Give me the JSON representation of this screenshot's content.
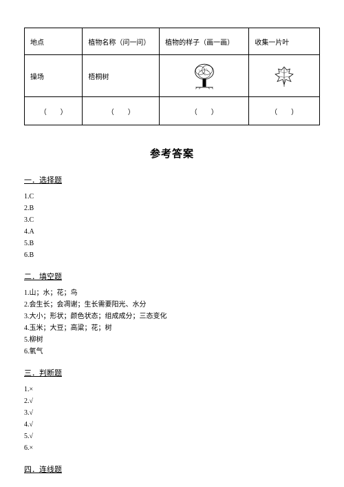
{
  "table": {
    "headers": [
      "地点",
      "植物名称（问一问）",
      "植物的样子（画一画）",
      "收集一片叶"
    ],
    "row1": {
      "place": "操场",
      "plant": "梧桐树"
    },
    "blank_cell": "（　　）"
  },
  "answers": {
    "title": "参考答案",
    "sections": [
      {
        "heading": "一．选择题",
        "lines": [
          "1.C",
          "2.B",
          "3.C",
          "4.A",
          "5.B",
          "6.B"
        ]
      },
      {
        "heading": "二．填空题",
        "lines": [
          "1.山；水；花；鸟",
          "2.会生长；会凋谢；生长需要阳光、水分",
          "3.大小；形状；颜色状态；组成成分；三态变化",
          "4.玉米；大豆；高粱；花；树",
          "5.柳树",
          "6.氧气"
        ]
      },
      {
        "heading": "三．判断题",
        "lines": [
          "1.×",
          "2.√",
          "3.√",
          "4.√",
          "5.√",
          "6.×"
        ]
      },
      {
        "heading": "四．连线题",
        "lines": []
      }
    ]
  }
}
